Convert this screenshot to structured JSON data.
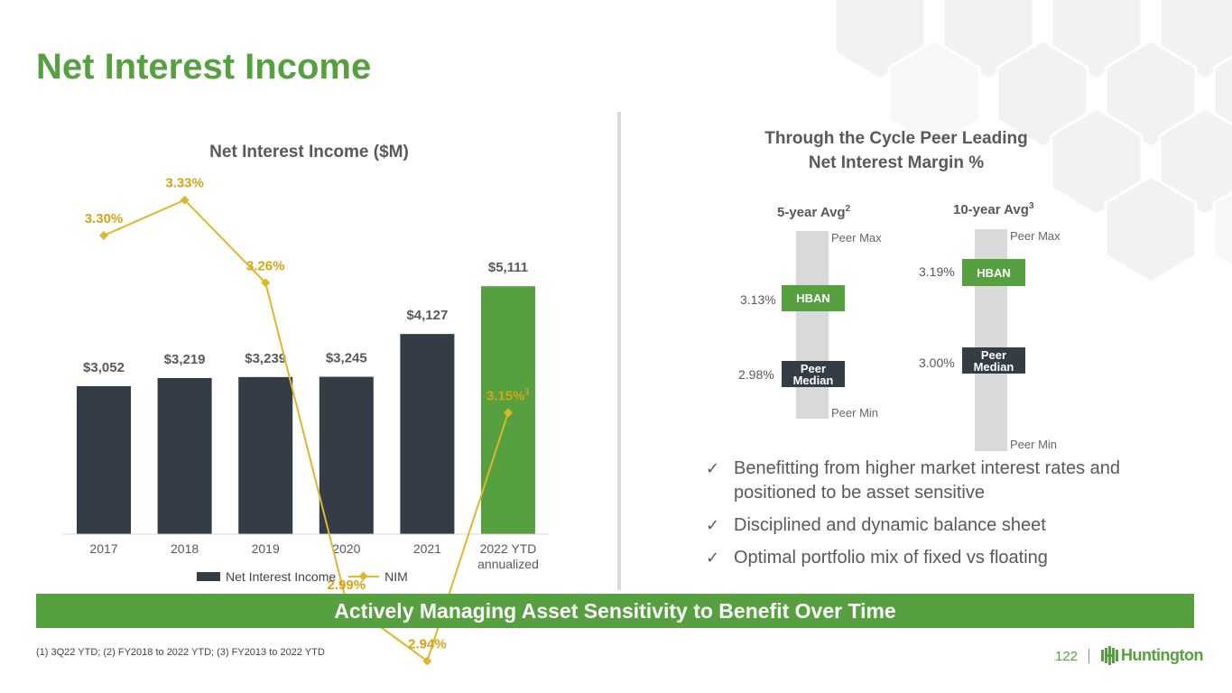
{
  "page": {
    "title": "Net Interest Income",
    "page_number": "122",
    "brand": "Huntington",
    "banner": "Actively Managing Asset Sensitivity to Benefit Over Time",
    "footnote": "(1) 3Q22 YTD; (2) FY2018 to 2022 YTD; (3) FY2013 to 2022 YTD"
  },
  "chart_data": {
    "type": "bar",
    "title": "Net Interest Income ($M)",
    "categories": [
      "2017",
      "2018",
      "2019",
      "2020",
      "2021",
      "2022 YTD\nannualized"
    ],
    "series": [
      {
        "name": "Net Interest Income",
        "type": "bar",
        "values": [
          3052,
          3219,
          3239,
          3245,
          4127,
          5111
        ],
        "labels": [
          "$3,052",
          "$3,219",
          "$3,239",
          "$3,245",
          "$4,127",
          "$5,111"
        ],
        "colors": [
          "#343d46",
          "#343d46",
          "#343d46",
          "#343d46",
          "#343d46",
          "#56a03f"
        ]
      },
      {
        "name": "NIM",
        "type": "line",
        "values": [
          3.3,
          3.33,
          3.26,
          2.99,
          2.94,
          3.15
        ],
        "labels": [
          "3.30%",
          "3.33%",
          "3.26%",
          "2.99%",
          "2.94%",
          "3.15%"
        ],
        "label_superscripts": [
          "",
          "",
          "",
          "",
          "",
          "1"
        ],
        "color": "#e0b62a"
      }
    ],
    "legend_position": "bottom",
    "grid": false
  },
  "margin_panel": {
    "title_line1": "Through the Cycle Peer Leading",
    "title_line2": "Net Interest Margin %",
    "five_year": {
      "heading": "5-year Avg",
      "footnote_mark": "2",
      "peer_max": "Peer Max",
      "peer_min": "Peer Min",
      "hban_label": "HBAN",
      "hban_value": "3.13%",
      "median_label_1": "Peer",
      "median_label_2": "Median",
      "median_value": "2.98%"
    },
    "ten_year": {
      "heading": "10-year Avg",
      "footnote_mark": "3",
      "peer_max": "Peer Max",
      "peer_min": "Peer Min",
      "hban_label": "HBAN",
      "hban_value": "3.19%",
      "median_label_1": "Peer",
      "median_label_2": "Median",
      "median_value": "3.00%"
    }
  },
  "bullets": [
    "Benefitting from higher market interest rates and positioned to be asset sensitive",
    "Disciplined and dynamic balance sheet",
    "Optimal portfolio mix of fixed vs floating"
  ],
  "colors": {
    "brand_green": "#56a03f",
    "bar_dark": "#343d46",
    "nim_line": "#e0b62a"
  }
}
